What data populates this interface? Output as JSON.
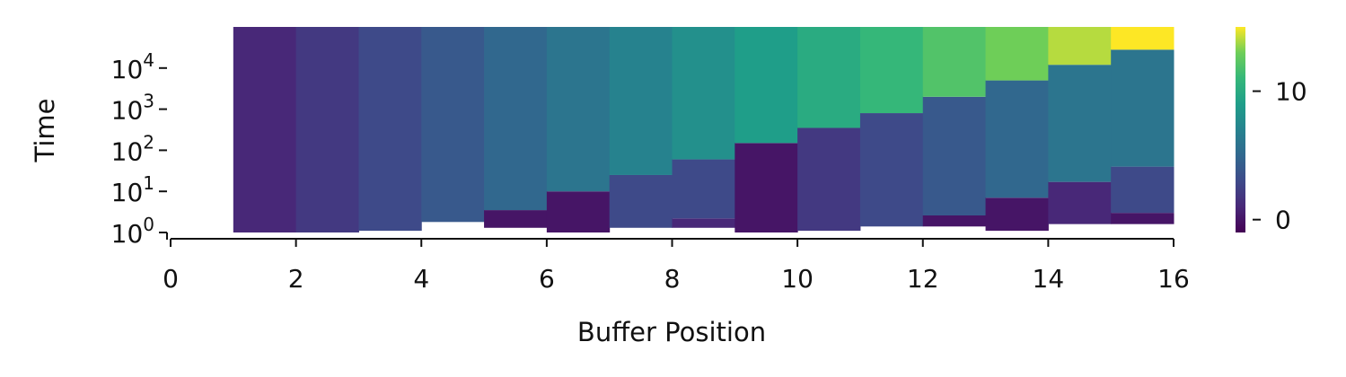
{
  "chart_data": {
    "type": "heatmap",
    "title": "",
    "xlabel": "Buffer Position",
    "ylabel": "Time",
    "x_range": [
      0,
      16
    ],
    "x_ticks": [
      {
        "value": 0,
        "label": "0"
      },
      {
        "value": 2,
        "label": "2"
      },
      {
        "value": 4,
        "label": "4"
      },
      {
        "value": 6,
        "label": "6"
      },
      {
        "value": 8,
        "label": "8"
      },
      {
        "value": 10,
        "label": "10"
      },
      {
        "value": 12,
        "label": "12"
      },
      {
        "value": 14,
        "label": "14"
      },
      {
        "value": 16,
        "label": "16"
      }
    ],
    "y_scale": "log",
    "y_range": [
      1,
      100000
    ],
    "y_ticks": [
      {
        "value": 1,
        "base": "10",
        "exp": "0"
      },
      {
        "value": 10,
        "base": "10",
        "exp": "1"
      },
      {
        "value": 100,
        "base": "10",
        "exp": "2"
      },
      {
        "value": 1000,
        "base": "10",
        "exp": "3"
      },
      {
        "value": 10000,
        "base": "10",
        "exp": "4"
      }
    ],
    "colormap": "viridis",
    "color_range": [
      -1,
      15
    ],
    "colorbar_ticks": [
      {
        "value": 0,
        "label": "0"
      },
      {
        "value": 10,
        "label": "10"
      }
    ],
    "grid": false,
    "columns": [
      {
        "x": 1,
        "segments": [
          {
            "from": 1,
            "to": 100000,
            "value": 1
          }
        ]
      },
      {
        "x": 2,
        "segments": [
          {
            "from": 1,
            "to": 100000,
            "value": 2
          }
        ]
      },
      {
        "x": 3,
        "segments": [
          {
            "from": 1.1,
            "to": 100000,
            "value": 3
          }
        ]
      },
      {
        "x": 4,
        "segments": [
          {
            "from": 1.8,
            "to": 100000,
            "value": 4
          }
        ]
      },
      {
        "x": 5,
        "segments": [
          {
            "from": 1.3,
            "to": 3.5,
            "value": 0
          },
          {
            "from": 3.5,
            "to": 100000,
            "value": 5
          }
        ]
      },
      {
        "x": 6,
        "segments": [
          {
            "from": 1,
            "to": 10,
            "value": 0
          },
          {
            "from": 10,
            "to": 100000,
            "value": 6
          }
        ]
      },
      {
        "x": 7,
        "segments": [
          {
            "from": 1.3,
            "to": 25,
            "value": 3
          },
          {
            "from": 25,
            "to": 100000,
            "value": 7
          }
        ]
      },
      {
        "x": 8,
        "segments": [
          {
            "from": 1.3,
            "to": 2.2,
            "value": 1
          },
          {
            "from": 2.2,
            "to": 60,
            "value": 3
          },
          {
            "from": 60,
            "to": 100000,
            "value": 8
          }
        ]
      },
      {
        "x": 9,
        "segments": [
          {
            "from": 1,
            "to": 150,
            "value": 0
          },
          {
            "from": 150,
            "to": 100000,
            "value": 9
          }
        ]
      },
      {
        "x": 10,
        "segments": [
          {
            "from": 1.1,
            "to": 350,
            "value": 2
          },
          {
            "from": 350,
            "to": 100000,
            "value": 10
          }
        ]
      },
      {
        "x": 11,
        "segments": [
          {
            "from": 1.4,
            "to": 800,
            "value": 3
          },
          {
            "from": 800,
            "to": 100000,
            "value": 11
          }
        ]
      },
      {
        "x": 12,
        "segments": [
          {
            "from": 1.4,
            "to": 2.6,
            "value": 0
          },
          {
            "from": 2.6,
            "to": 2000,
            "value": 4
          },
          {
            "from": 2000,
            "to": 100000,
            "value": 12
          }
        ]
      },
      {
        "x": 13,
        "segments": [
          {
            "from": 1.1,
            "to": 7,
            "value": 0
          },
          {
            "from": 7,
            "to": 5000,
            "value": 5
          },
          {
            "from": 5000,
            "to": 100000,
            "value": 13
          }
        ]
      },
      {
        "x": 14,
        "segments": [
          {
            "from": 1.6,
            "to": 17,
            "value": 1
          },
          {
            "from": 17,
            "to": 12000,
            "value": 6
          },
          {
            "from": 12000,
            "to": 100000,
            "value": 14
          }
        ]
      },
      {
        "x": 15,
        "segments": [
          {
            "from": 1.6,
            "to": 3,
            "value": 0
          },
          {
            "from": 3,
            "to": 40,
            "value": 3
          },
          {
            "from": 40,
            "to": 28000,
            "value": 6
          },
          {
            "from": 28000,
            "to": 100000,
            "value": 15
          }
        ]
      }
    ]
  }
}
